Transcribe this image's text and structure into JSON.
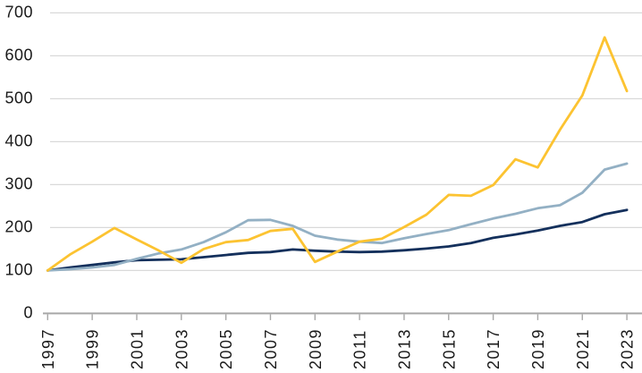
{
  "chart_data": {
    "type": "line",
    "title": "",
    "xlabel": "",
    "ylabel": "",
    "x": [
      1997,
      1998,
      1999,
      2000,
      2001,
      2002,
      2003,
      2004,
      2005,
      2006,
      2007,
      2008,
      2009,
      2010,
      2011,
      2012,
      2013,
      2014,
      2015,
      2016,
      2017,
      2018,
      2019,
      2020,
      2021,
      2022,
      2023
    ],
    "x_tick_labels": [
      "1997",
      "1999",
      "2001",
      "2003",
      "2005",
      "2007",
      "2009",
      "2011",
      "2013",
      "2015",
      "2017",
      "2019",
      "2021",
      "2023"
    ],
    "x_tick_years": [
      1997,
      1999,
      2001,
      2003,
      2005,
      2007,
      2009,
      2011,
      2013,
      2015,
      2017,
      2019,
      2021,
      2023
    ],
    "ylim": [
      0,
      700
    ],
    "yticks": [
      0,
      100,
      200,
      300,
      400,
      500,
      600,
      700
    ],
    "grid": "horizontal",
    "legend": "none",
    "series": [
      {
        "name": "dark-blue",
        "color": "#14305C",
        "values": [
          100,
          107,
          113,
          119,
          124,
          125,
          126,
          131,
          136,
          141,
          143,
          149,
          146,
          144,
          143,
          144,
          147,
          151,
          156,
          164,
          176,
          184,
          193,
          204,
          213,
          231,
          241
        ]
      },
      {
        "name": "light-blue",
        "color": "#93B0C4",
        "values": [
          100,
          103,
          107,
          113,
          127,
          140,
          149,
          166,
          189,
          217,
          218,
          204,
          181,
          172,
          167,
          164,
          175,
          185,
          194,
          208,
          221,
          232,
          245,
          252,
          281,
          335,
          349
        ]
      },
      {
        "name": "yellow",
        "color": "#FCC331",
        "values": [
          100,
          137,
          167,
          199,
          172,
          146,
          118,
          150,
          166,
          171,
          192,
          197,
          120,
          144,
          167,
          174,
          201,
          230,
          276,
          274,
          299,
          359,
          340,
          428,
          508,
          643,
          518
        ]
      }
    ],
    "colors": {
      "gridline": "#D9D9D9",
      "axis": "#A7A7A7",
      "tick_text": "#1A1A1A",
      "background": "#FFFFFF"
    }
  }
}
